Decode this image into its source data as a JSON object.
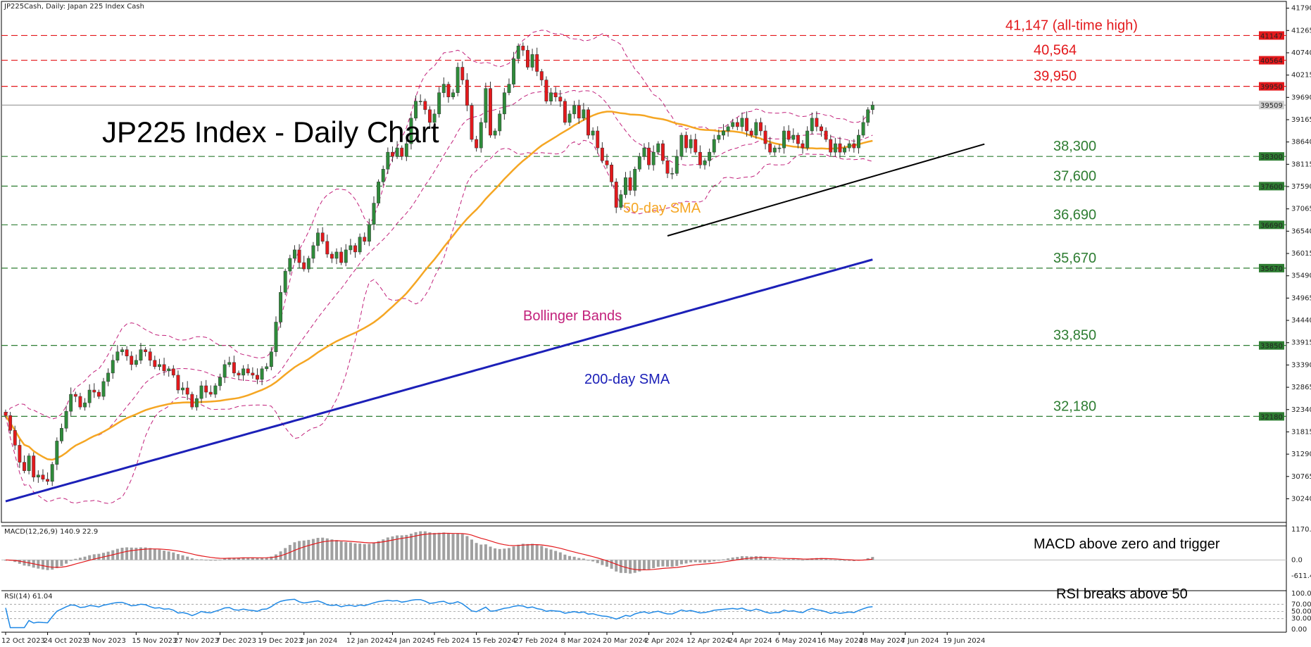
{
  "window": {
    "header": "JP225Cash, Daily:  Japan 225 Index Cash"
  },
  "title": "JP225 Index - Daily Chart",
  "colors": {
    "resistance": "#e3191c",
    "support": "#2e7d32",
    "sma50": "#f5a623",
    "sma200": "#1c20b8",
    "bollinger": "#c2217b",
    "trendline": "#000000",
    "bull": "#2e8b3a",
    "bear": "#e3191c",
    "macd_hist": "#a0a0a0",
    "macd_signal": "#e3191c",
    "rsi": "#1e88e5",
    "price_line": "#8a8a8a"
  },
  "chart_data": [
    {
      "type": "candlestick",
      "title": "JP225 Index - Daily Chart",
      "ylim": [
        29800,
        41850
      ],
      "last_price": 39509,
      "x_ticks": [
        "12 Oct 2023",
        "24 Oct 2023",
        "3 Nov 2023",
        "15 Nov 2023",
        "27 Nov 2023",
        "7 Dec 2023",
        "19 Dec 2023",
        "2 Jan 2024",
        "12 Jan 2024",
        "24 Jan 2024",
        "5 Feb 2024",
        "15 Feb 2024",
        "27 Feb 2024",
        "8 Mar 2024",
        "20 Mar 2024",
        "2 Apr 2024",
        "12 Apr 2024",
        "24 Apr 2024",
        "6 May 2024",
        "16 May 2024",
        "28 May 2024",
        "7 Jun 2024",
        "19 Jun 2024"
      ],
      "y_ticks": [
        41790,
        41265,
        40740,
        40215,
        39690,
        39165,
        38640,
        38115,
        37590,
        37065,
        36540,
        36015,
        35490,
        34965,
        34440,
        33915,
        33390,
        32865,
        32340,
        31815,
        31290,
        30765,
        30240
      ],
      "resistance_levels": [
        {
          "value": 41147,
          "label": "41,147 (all-time high)",
          "tag": "41147"
        },
        {
          "value": 40564,
          "label": "40,564",
          "tag": "40564"
        },
        {
          "value": 39950,
          "label": "39,950",
          "tag": "39950"
        }
      ],
      "support_levels": [
        {
          "value": 38300,
          "label": "38,300",
          "tag": "38300"
        },
        {
          "value": 37600,
          "label": "37,600",
          "tag": "37600"
        },
        {
          "value": 36690,
          "label": "36,690",
          "tag": "36690"
        },
        {
          "value": 35670,
          "label": "35,670",
          "tag": "35670"
        },
        {
          "value": 33850,
          "label": "33,850",
          "tag": "33850"
        },
        {
          "value": 32180,
          "label": "32,180",
          "tag": "32180"
        }
      ],
      "annotations": {
        "sma50": "50-day SMA",
        "sma200": "200-day SMA",
        "bollinger": "Bollinger Bands"
      },
      "trendline": {
        "from": [
          142,
          36430
        ],
        "to": [
          210,
          38590
        ]
      },
      "closes": [
        32200,
        31850,
        31500,
        31100,
        30900,
        31250,
        30750,
        30800,
        30700,
        30650,
        31050,
        31600,
        31900,
        32300,
        32700,
        32650,
        32400,
        32500,
        32800,
        32750,
        32650,
        33000,
        33200,
        33500,
        33700,
        33750,
        33600,
        33400,
        33500,
        33750,
        33700,
        33500,
        33350,
        33400,
        33250,
        33300,
        33150,
        32800,
        32850,
        32700,
        32400,
        32600,
        32900,
        32750,
        32700,
        32900,
        33100,
        33400,
        33450,
        33200,
        33150,
        33300,
        33200,
        33150,
        33050,
        33300,
        33350,
        33700,
        34400,
        35100,
        35600,
        35900,
        36100,
        35800,
        35650,
        35900,
        36200,
        36500,
        36300,
        36000,
        35900,
        36050,
        35800,
        36100,
        36200,
        36050,
        36400,
        36300,
        36700,
        37200,
        37700,
        38000,
        38400,
        38300,
        38500,
        38300,
        38600,
        39200,
        39600,
        39600,
        39400,
        39100,
        39300,
        39800,
        40000,
        39700,
        39800,
        40400,
        40100,
        39500,
        38700,
        38500,
        39100,
        39900,
        38800,
        38900,
        39300,
        39800,
        40000,
        40600,
        40900,
        40800,
        40400,
        40700,
        40300,
        40100,
        39600,
        39800,
        39700,
        39600,
        39100,
        39300,
        39500,
        39200,
        39400,
        38800,
        38900,
        38500,
        38200,
        38100,
        37700,
        37100,
        37400,
        37800,
        37500,
        38000,
        38300,
        38500,
        38100,
        38400,
        38600,
        38200,
        37900,
        37900,
        38300,
        38800,
        38500,
        38700,
        38400,
        38100,
        38200,
        38400,
        38700,
        38800,
        38900,
        39000,
        39100,
        39000,
        39200,
        38900,
        38800,
        39100,
        38900,
        38600,
        38400,
        38500,
        38500,
        38900,
        38700,
        38800,
        38600,
        38500,
        38900,
        39200,
        39000,
        38900,
        38700,
        38400,
        38600,
        38400,
        38500,
        38600,
        38500,
        38800,
        39100,
        39400,
        39509
      ]
    },
    {
      "type": "bar",
      "name": "MACD(12,26,9) 140.9 22.9",
      "ylim": [
        -611.4,
        1170.1
      ],
      "y_ticks": [
        1170.1,
        0.0,
        -611.4
      ],
      "annotation": "MACD above zero and trigger"
    },
    {
      "type": "line",
      "name": "RSI(14) 61.04",
      "ylim": [
        0,
        100
      ],
      "y_ticks": [
        100.0,
        70.0,
        50.0,
        30.0,
        0.0
      ],
      "annotation": "RSI breaks above 50"
    }
  ]
}
